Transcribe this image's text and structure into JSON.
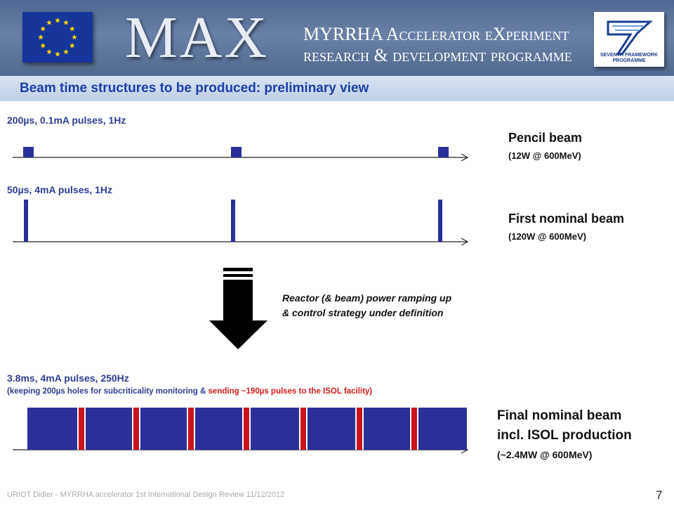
{
  "header": {
    "logo_text": "MAX",
    "programme_line1": "MYRRHA Accelerator eXperiment",
    "programme_line2": "research & development programme",
    "fp7_caption_line1": "SEVENTH FRAMEWORK",
    "fp7_caption_line2": "PROGRAMME"
  },
  "slide": {
    "title": "Beam time structures to be produced: preliminary view"
  },
  "beams": {
    "pencil": {
      "spec": "200µs, 0.1mA pulses, 1Hz",
      "name": "Pencil beam",
      "power": "(12W @ 600MeV)"
    },
    "first_nominal": {
      "spec": "50µs, 4mA pulses, 1Hz",
      "name": "First nominal beam",
      "power": "(120W @ 600MeV)"
    },
    "final_nominal": {
      "spec": "3.8ms, 4mA pulses, 250Hz",
      "note_part1": "(keeping 200µs holes for subcriticality  monitoring & ",
      "note_part2": "sending ~190µs pulses to the ISOL facility)",
      "name_line1": "Final nominal beam",
      "name_line2": "incl. ISOL production",
      "power": "(~2.4MW @ 600MeV)"
    }
  },
  "transition": {
    "line1": "Reactor (& beam) power ramping up",
    "line2": "& control strategy under definition"
  },
  "footer": {
    "text": "URIOT  Didier - MYRRHA  accelerator  1st International  Design Review  11/12/2012",
    "page": "7"
  },
  "colors": {
    "pulse": "#2a2f9a",
    "isol_slice": "#c9141e",
    "note_red": "#d21a1a",
    "title_blue": "#1c3fa9"
  }
}
